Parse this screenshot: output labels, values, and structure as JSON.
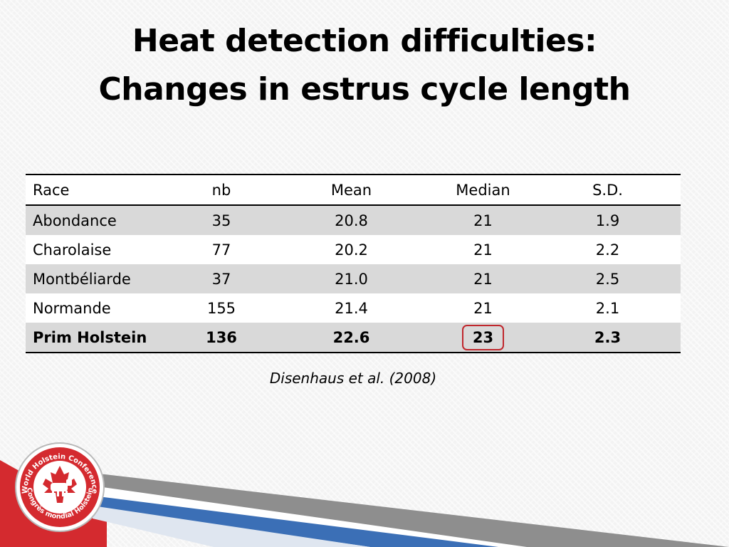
{
  "title": {
    "line1": "Heat detection difficulties:",
    "line2": "Changes in estrus cycle length"
  },
  "table": {
    "headers": {
      "race": "Race",
      "nb": "nb",
      "mean": "Mean",
      "median": "Median",
      "sd": "S.D."
    },
    "rows": [
      {
        "race": "Abondance",
        "nb": "35",
        "mean": "20.8",
        "median": "21",
        "sd": "1.9"
      },
      {
        "race": "Charolaise",
        "nb": "77",
        "mean": "20.2",
        "median": "21",
        "sd": "2.2"
      },
      {
        "race": "Montbéliarde",
        "nb": "37",
        "mean": "21.0",
        "median": "21",
        "sd": "2.5"
      },
      {
        "race": "Normande",
        "nb": "155",
        "mean": "21.4",
        "median": "21",
        "sd": "2.1"
      },
      {
        "race": "Prim Holstein",
        "nb": "136",
        "mean": "22.6",
        "median": "23",
        "sd": "2.3"
      }
    ]
  },
  "citation": "Disenhaus et al. (2008)",
  "logo": {
    "arc_top": "World Holstein Conference",
    "year": "2012",
    "arc_bottom": "Congrès mondial Holstein"
  },
  "colors": {
    "highlight": "#c0272d",
    "row_shade": "#d9d9d9",
    "logo_red": "#d42a2f",
    "logo_blue": "#3b6fb6"
  }
}
